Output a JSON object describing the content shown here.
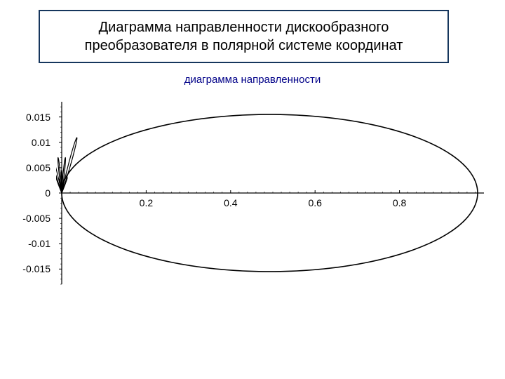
{
  "title": {
    "line1": "Диаграмма направленности дискообразного",
    "line2": "преобразователя в полярной системе координат",
    "border_color": "#16365d",
    "text_color": "#000000",
    "fontsize": 20
  },
  "chart": {
    "type": "polar-directivity",
    "title": "диаграмма направленности",
    "title_color": "#000088",
    "title_fontsize": 15,
    "background_color": "#ffffff",
    "axis_color": "#000000",
    "curve_color": "#000000",
    "curve_width": 1.6,
    "tick_len": 4,
    "x": {
      "min": 0,
      "max": 1.0,
      "ticks": [
        0,
        0.2,
        0.4,
        0.6,
        0.8
      ]
    },
    "y": {
      "min": -0.018,
      "max": 0.018,
      "ticks": [
        0.015,
        0.01,
        0.005,
        0,
        -0.005,
        -0.01,
        -0.015
      ]
    },
    "y_tick_labels": [
      "0.015",
      "0.01",
      "0.005",
      "0",
      "-0.005",
      "-0.01",
      "-0.015"
    ],
    "x_tick_labels": [
      "0",
      "0.2",
      "0.4",
      "0.6",
      "0.8"
    ],
    "main_lobe": {
      "r_max": 0.985,
      "half_width_y": 0.0155
    },
    "side_lobes": [
      {
        "angle_deg": 65,
        "r": 0.085
      },
      {
        "angle_deg": 80,
        "r": 0.05
      },
      {
        "angle_deg": 90,
        "r": 0.032
      },
      {
        "angle_deg": 100,
        "r": 0.05
      },
      {
        "angle_deg": 115,
        "r": 0.085
      }
    ],
    "minor_lobes": [
      {
        "angle_deg": 58,
        "r": 0.025
      },
      {
        "angle_deg": 72,
        "r": 0.02
      },
      {
        "angle_deg": 108,
        "r": 0.02
      },
      {
        "angle_deg": 122,
        "r": 0.025
      }
    ]
  }
}
